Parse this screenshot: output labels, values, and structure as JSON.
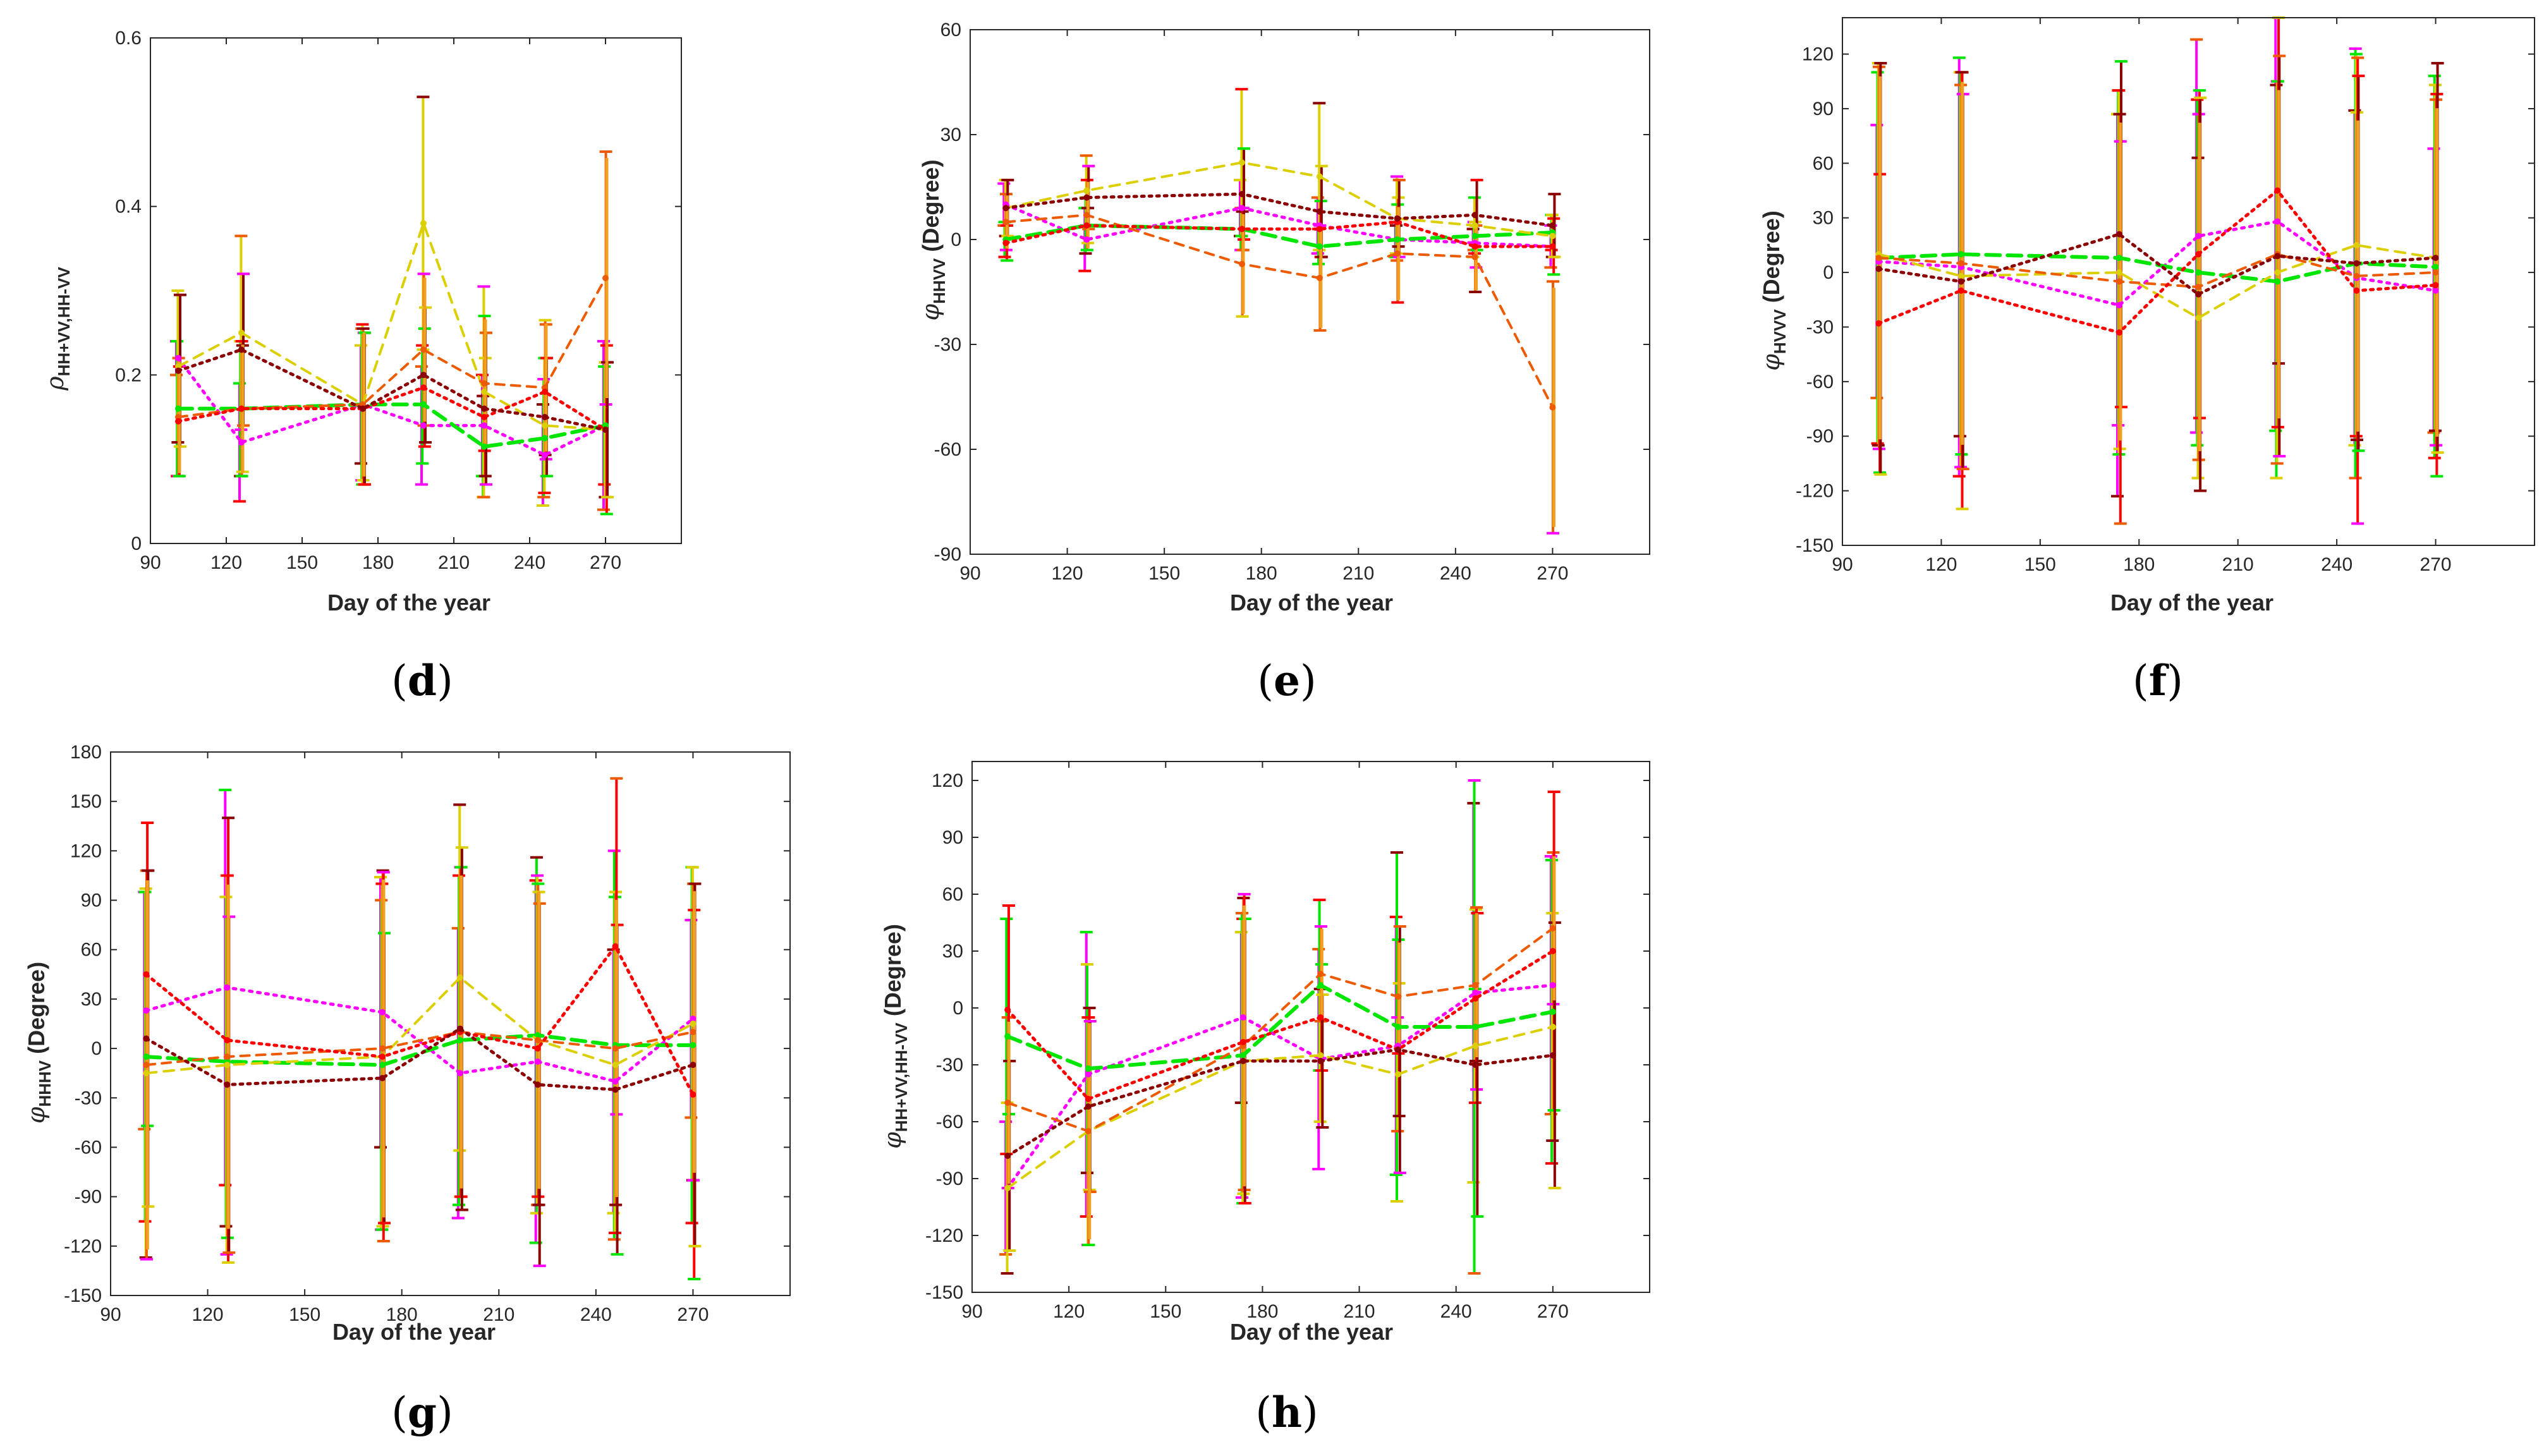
{
  "chart_data": [
    {
      "type": "line",
      "panel_label": "d",
      "xlabel": "Day of the year",
      "ylabel_symbol": "ρ",
      "ylabel_sub": "HH+VV,HH-VV",
      "ylabel_unit": "",
      "xlim": [
        90,
        300
      ],
      "ylim": [
        0,
        0.6
      ],
      "xticks": [
        90,
        120,
        150,
        180,
        210,
        240,
        270
      ],
      "yticks": [
        0,
        0.2,
        0.4,
        0.6
      ],
      "ytick_labels": [
        "0",
        "0.2",
        "0.4",
        "0.6"
      ],
      "x": [
        101,
        126,
        174,
        198,
        222,
        246,
        270
      ],
      "series": [
        {
          "name": "magenta dotted",
          "values": [
            0.22,
            0.12,
            0.165,
            0.14,
            0.14,
            0.105,
            0.14
          ],
          "err": [
            0.02,
            0.07,
            0.07,
            0.07,
            0.06,
            0.06,
            0.1
          ]
        },
        {
          "name": "green dashed",
          "values": [
            0.16,
            0.16,
            0.165,
            0.165,
            0.115,
            0.125,
            0.14
          ],
          "err": [
            0.08,
            0.08,
            0.09,
            0.07,
            0.06,
            0.07,
            0.07
          ]
        },
        {
          "name": "yellow dashed",
          "values": [
            0.21,
            0.25,
            0.165,
            0.38,
            0.18,
            0.14,
            0.135
          ],
          "err": [
            0.09,
            0.115,
            0.095,
            0.15,
            0.125,
            0.08,
            0.08
          ]
        },
        {
          "name": "orange dashed",
          "values": [
            0.15,
            0.16,
            0.165,
            0.23,
            0.19,
            0.185,
            0.315
          ],
          "err": [
            0.07,
            0.08,
            0.09,
            0.09,
            0.08,
            0.08,
            0.15
          ]
        },
        {
          "name": "red dotted",
          "values": [
            0.145,
            0.16,
            0.16,
            0.185,
            0.15,
            0.18,
            0.135
          ],
          "err": [
            0.065,
            0.075,
            0.09,
            0.07,
            0.07,
            0.08,
            0.1
          ]
        },
        {
          "name": "dark red dotted",
          "values": [
            0.205,
            0.23,
            0.16,
            0.2,
            0.16,
            0.15,
            0.135
          ],
          "err": [
            0.09,
            0.09,
            0.09,
            0.08,
            0.09,
            0.07,
            0.08
          ]
        }
      ]
    },
    {
      "type": "line",
      "panel_label": "e",
      "xlabel": "Day of the year",
      "ylabel_symbol": "φ",
      "ylabel_sub": "HHVV",
      "ylabel_unit": " (Degree)",
      "xlim": [
        90,
        300
      ],
      "ylim": [
        -90,
        60
      ],
      "xticks": [
        90,
        120,
        150,
        180,
        210,
        240,
        270
      ],
      "yticks": [
        -90,
        -60,
        -30,
        0,
        30,
        60
      ],
      "ytick_labels": [
        "-90",
        "-60",
        "-30",
        "0",
        "30",
        "60"
      ],
      "x": [
        101,
        126,
        174,
        198,
        222,
        246,
        270
      ],
      "series": [
        {
          "name": "magenta dotted",
          "values": [
            10,
            0,
            9,
            4,
            0,
            -1,
            -2
          ],
          "err": [
            6,
            9,
            8,
            8,
            5,
            4,
            6
          ]
        },
        {
          "name": "green dashed",
          "values": [
            0,
            4,
            3,
            -2,
            0,
            1,
            2
          ],
          "err": [
            5,
            8,
            6,
            5,
            4,
            4,
            5
          ]
        },
        {
          "name": "yellow dashed",
          "values": [
            9,
            14,
            22,
            18,
            6,
            4,
            1
          ],
          "err": [
            8,
            10,
            21,
            21,
            12,
            8,
            6
          ]
        },
        {
          "name": "orange dashed",
          "values": [
            5,
            7,
            -7,
            -11,
            -4,
            -5,
            -48
          ],
          "err": [
            8,
            10,
            15,
            15,
            14,
            10,
            36
          ]
        },
        {
          "name": "red dotted",
          "values": [
            -1,
            4,
            3,
            3,
            5,
            -2,
            -2
          ],
          "err": [
            5,
            5,
            6,
            8,
            7,
            6,
            8
          ]
        },
        {
          "name": "dark red dotted",
          "values": [
            9,
            12,
            13,
            8,
            6,
            7,
            4
          ],
          "err": [
            8,
            9,
            13,
            13,
            11,
            10,
            9
          ]
        }
      ]
    },
    {
      "type": "line",
      "panel_label": "f",
      "xlabel": "Day of the year",
      "ylabel_symbol": "φ",
      "ylabel_sub": "HVVV",
      "ylabel_unit": " (Degree)",
      "xlim": [
        90,
        300
      ],
      "ylim": [
        -150,
        140
      ],
      "xticks": [
        90,
        120,
        150,
        180,
        210,
        240,
        270
      ],
      "yticks": [
        -150,
        -120,
        -90,
        -60,
        -30,
        0,
        30,
        60,
        90,
        120
      ],
      "ytick_labels": [
        "-150",
        "-120",
        "-90",
        "-60",
        "-30",
        "0",
        "30",
        "60",
        "90",
        "120"
      ],
      "x": [
        101,
        126,
        174,
        198,
        222,
        246,
        270
      ],
      "series": [
        {
          "name": "magenta dotted",
          "values": [
            6,
            3,
            -18,
            20,
            28,
            -3,
            -10
          ],
          "err": [
            75,
            115,
            105,
            108,
            115,
            92,
            78
          ]
        },
        {
          "name": "green dashed",
          "values": [
            8,
            10,
            8,
            0,
            -5,
            5,
            3
          ],
          "err": [
            102,
            100,
            92,
            95,
            108,
            118,
            105
          ]
        },
        {
          "name": "yellow dashed",
          "values": [
            10,
            -2,
            0,
            -25,
            0,
            15,
            8
          ],
          "err": [
            105,
            105,
            100,
            88,
            105,
            105,
            95
          ]
        },
        {
          "name": "orange dashed",
          "values": [
            8,
            5,
            -5,
            -8,
            10,
            -2,
            0
          ],
          "err": [
            105,
            105,
            92,
            95,
            95,
            90,
            95
          ]
        },
        {
          "name": "red dotted",
          "values": [
            -28,
            -10,
            -33,
            10,
            45,
            -10,
            -7
          ],
          "err": [
            82,
            120,
            105,
            90,
            95,
            128,
            105
          ]
        },
        {
          "name": "dark red dotted",
          "values": [
            2,
            -5,
            21,
            -12,
            9,
            5,
            8
          ],
          "err": [
            113,
            103,
            95,
            108,
            110,
            103,
            107
          ]
        }
      ]
    },
    {
      "type": "line",
      "panel_label": "g",
      "xlabel": "Day of the year",
      "ylabel_symbol": "φ",
      "ylabel_sub": "HHHV",
      "ylabel_unit": " (Degree)",
      "xlim": [
        90,
        300
      ],
      "ylim": [
        -150,
        180
      ],
      "xticks": [
        90,
        120,
        150,
        180,
        210,
        240,
        270
      ],
      "yticks": [
        -150,
        -120,
        -90,
        -60,
        -30,
        0,
        30,
        60,
        90,
        120,
        150,
        180
      ],
      "ytick_labels": [
        "-150",
        "-120",
        "-90",
        "-60",
        "-30",
        "0",
        "30",
        "60",
        "90",
        "120",
        "150",
        "180"
      ],
      "x": [
        101,
        126,
        174,
        198,
        222,
        246,
        270
      ],
      "series": [
        {
          "name": "magenta dotted",
          "values": [
            23,
            37,
            22,
            -15,
            -8,
            -20,
            18
          ],
          "err": [
            72,
            120,
            82,
            88,
            110,
            80,
            60
          ]
        },
        {
          "name": "green dashed",
          "values": [
            -5,
            -8,
            -10,
            5,
            8,
            2,
            2
          ],
          "err": [
            100,
            100,
            100,
            100,
            108,
            118,
            108
          ]
        },
        {
          "name": "yellow dashed",
          "values": [
            -15,
            -10,
            -5,
            43,
            5,
            -10,
            15
          ],
          "err": [
            112,
            115,
            105,
            105,
            100,
            102,
            95
          ]
        },
        {
          "name": "orange dashed",
          "values": [
            -10,
            -5,
            0,
            10,
            5,
            0,
            10
          ],
          "err": [
            118,
            110,
            108,
            100,
            95,
            95,
            90
          ]
        },
        {
          "name": "red dotted",
          "values": [
            45,
            5,
            -5,
            10,
            0,
            62,
            -28
          ],
          "err": [
            92,
            135,
            112,
            100,
            95,
            102,
            112
          ]
        },
        {
          "name": "dark red dotted",
          "values": [
            6,
            -22,
            -18,
            12,
            -22,
            -25,
            -10
          ],
          "err": [
            102,
            102,
            88,
            110,
            110,
            100,
            110
          ]
        }
      ]
    },
    {
      "type": "line",
      "panel_label": "h",
      "xlabel": "Day of the year",
      "ylabel_symbol": "φ",
      "ylabel_sub": "HH+VV,HH-VV",
      "ylabel_unit": " (Degree)",
      "xlim": [
        90,
        300
      ],
      "ylim": [
        -150,
        130
      ],
      "xticks": [
        90,
        120,
        150,
        180,
        210,
        240,
        270
      ],
      "yticks": [
        -150,
        -120,
        -90,
        -60,
        -30,
        0,
        30,
        60,
        90,
        120
      ],
      "ytick_labels": [
        "-150",
        "-120",
        "-90",
        "-60",
        "-30",
        "0",
        "30",
        "60",
        "90",
        "120"
      ],
      "x": [
        101,
        126,
        174,
        198,
        222,
        246,
        270
      ],
      "series": [
        {
          "name": "magenta dotted",
          "values": [
            -95,
            -35,
            -5,
            -27,
            -20,
            8,
            12
          ],
          "err": [
            35,
            75,
            45,
            58,
            68,
            100,
            68
          ]
        },
        {
          "name": "green dashed",
          "values": [
            -15,
            -32,
            -25,
            12,
            -10,
            -10,
            -2
          ],
          "err": [
            62,
            55,
            75,
            45,
            92,
            130,
            80
          ]
        },
        {
          "name": "yellow dashed",
          "values": [
            -95,
            -65,
            -28,
            -25,
            -35,
            -20,
            -10
          ],
          "err": [
            45,
            60,
            75,
            35,
            30,
            30,
            60
          ]
        },
        {
          "name": "orange dashed",
          "values": [
            -50,
            -65,
            -20,
            18,
            6,
            12,
            42
          ],
          "err": [
            45,
            60,
            78,
            25,
            30,
            40,
            40
          ]
        },
        {
          "name": "red dotted",
          "values": [
            -1,
            -48,
            -18,
            -5,
            -22,
            5,
            30
          ],
          "err": [
            55,
            48,
            78,
            28,
            35,
            48,
            84
          ]
        },
        {
          "name": "dark red dotted",
          "values": [
            -78,
            -52,
            -28,
            -28,
            -22,
            -30,
            -25
          ],
          "err": [
            50,
            45,
            75,
            35,
            65,
            80,
            70
          ]
        }
      ]
    }
  ],
  "series_styles": [
    {
      "color": "#ff00ff",
      "dash": "4 9",
      "width": 5
    },
    {
      "color": "#00e600",
      "dash": "22 12",
      "width": 6
    },
    {
      "color": "#dccf00",
      "dash": "16 12",
      "width": 4
    },
    {
      "color": "#ee5a00",
      "dash": "14 11",
      "width": 4
    },
    {
      "color": "#ff0000",
      "dash": "4 8",
      "width": 5
    },
    {
      "color": "#8b0000",
      "dash": "4 8",
      "width": 5
    }
  ],
  "errorbar_palette": [
    "#ff00ff",
    "#00e600",
    "#dccf00",
    "#ee5a00",
    "#ff0000",
    "#8b0000"
  ],
  "overlay_bar_color": "#f0a020",
  "axis_color": "#262626"
}
